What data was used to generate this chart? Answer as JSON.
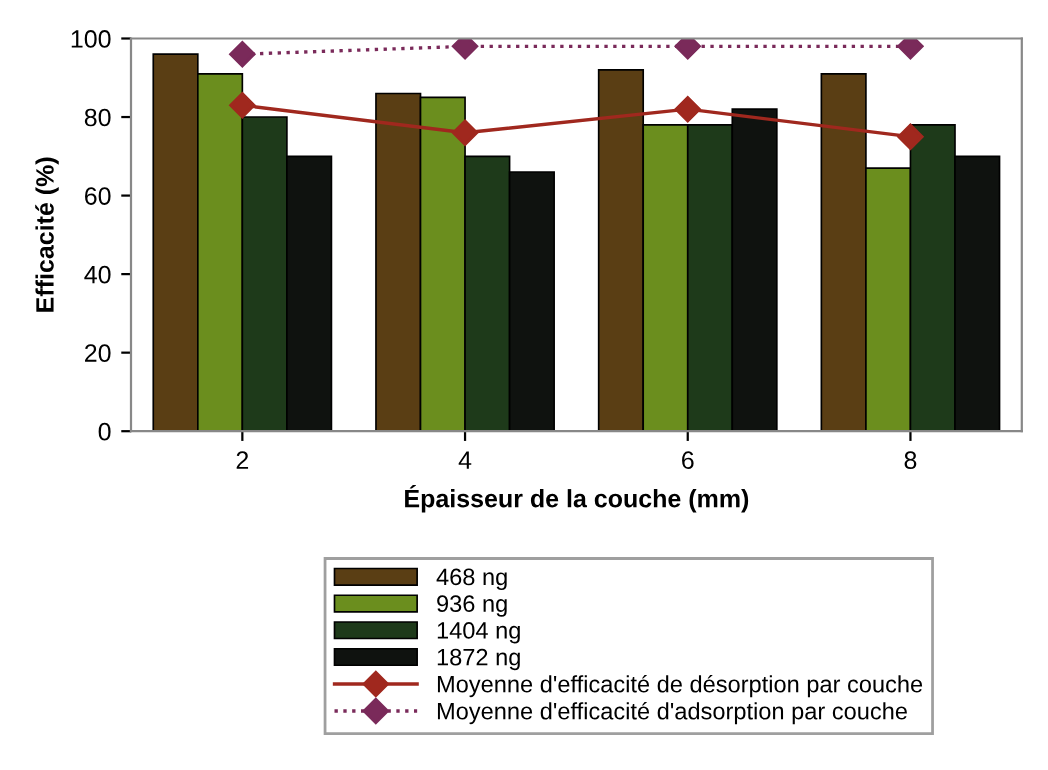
{
  "chart_data": {
    "type": "bar",
    "xlabel": "Épaisseur de la couche (mm)",
    "ylabel": "Efficacité (%)",
    "categories": [
      "2",
      "4",
      "6",
      "8"
    ],
    "series": [
      {
        "name": "468 ng",
        "color": "#5a3e14",
        "values": [
          96,
          86,
          92,
          91
        ]
      },
      {
        "name": "936 ng",
        "color": "#6b8e1e",
        "values": [
          91,
          85,
          78,
          67
        ]
      },
      {
        "name": "1404 ng",
        "color": "#1e3a1a",
        "values": [
          80,
          70,
          78,
          78
        ]
      },
      {
        "name": "1872 ng",
        "color": "#0f120f",
        "values": [
          70,
          66,
          82,
          70
        ]
      },
      {
        "name": "Moyenne d'efficacité de désorption par couche",
        "type": "line",
        "color": "#a0281e",
        "marker": "diamond",
        "line_style": "solid",
        "values": [
          83,
          76,
          82,
          75
        ]
      },
      {
        "name": "Moyenne d'efficacité d'adsorption par couche",
        "type": "line",
        "color": "#7a2a5a",
        "marker": "diamond",
        "line_style": "dotted",
        "values": [
          96,
          98,
          98,
          98
        ]
      }
    ],
    "ylim": [
      0,
      100
    ],
    "yticks": [
      0,
      20,
      40,
      60,
      80,
      100
    ],
    "grid": false,
    "legend": "bottom"
  }
}
